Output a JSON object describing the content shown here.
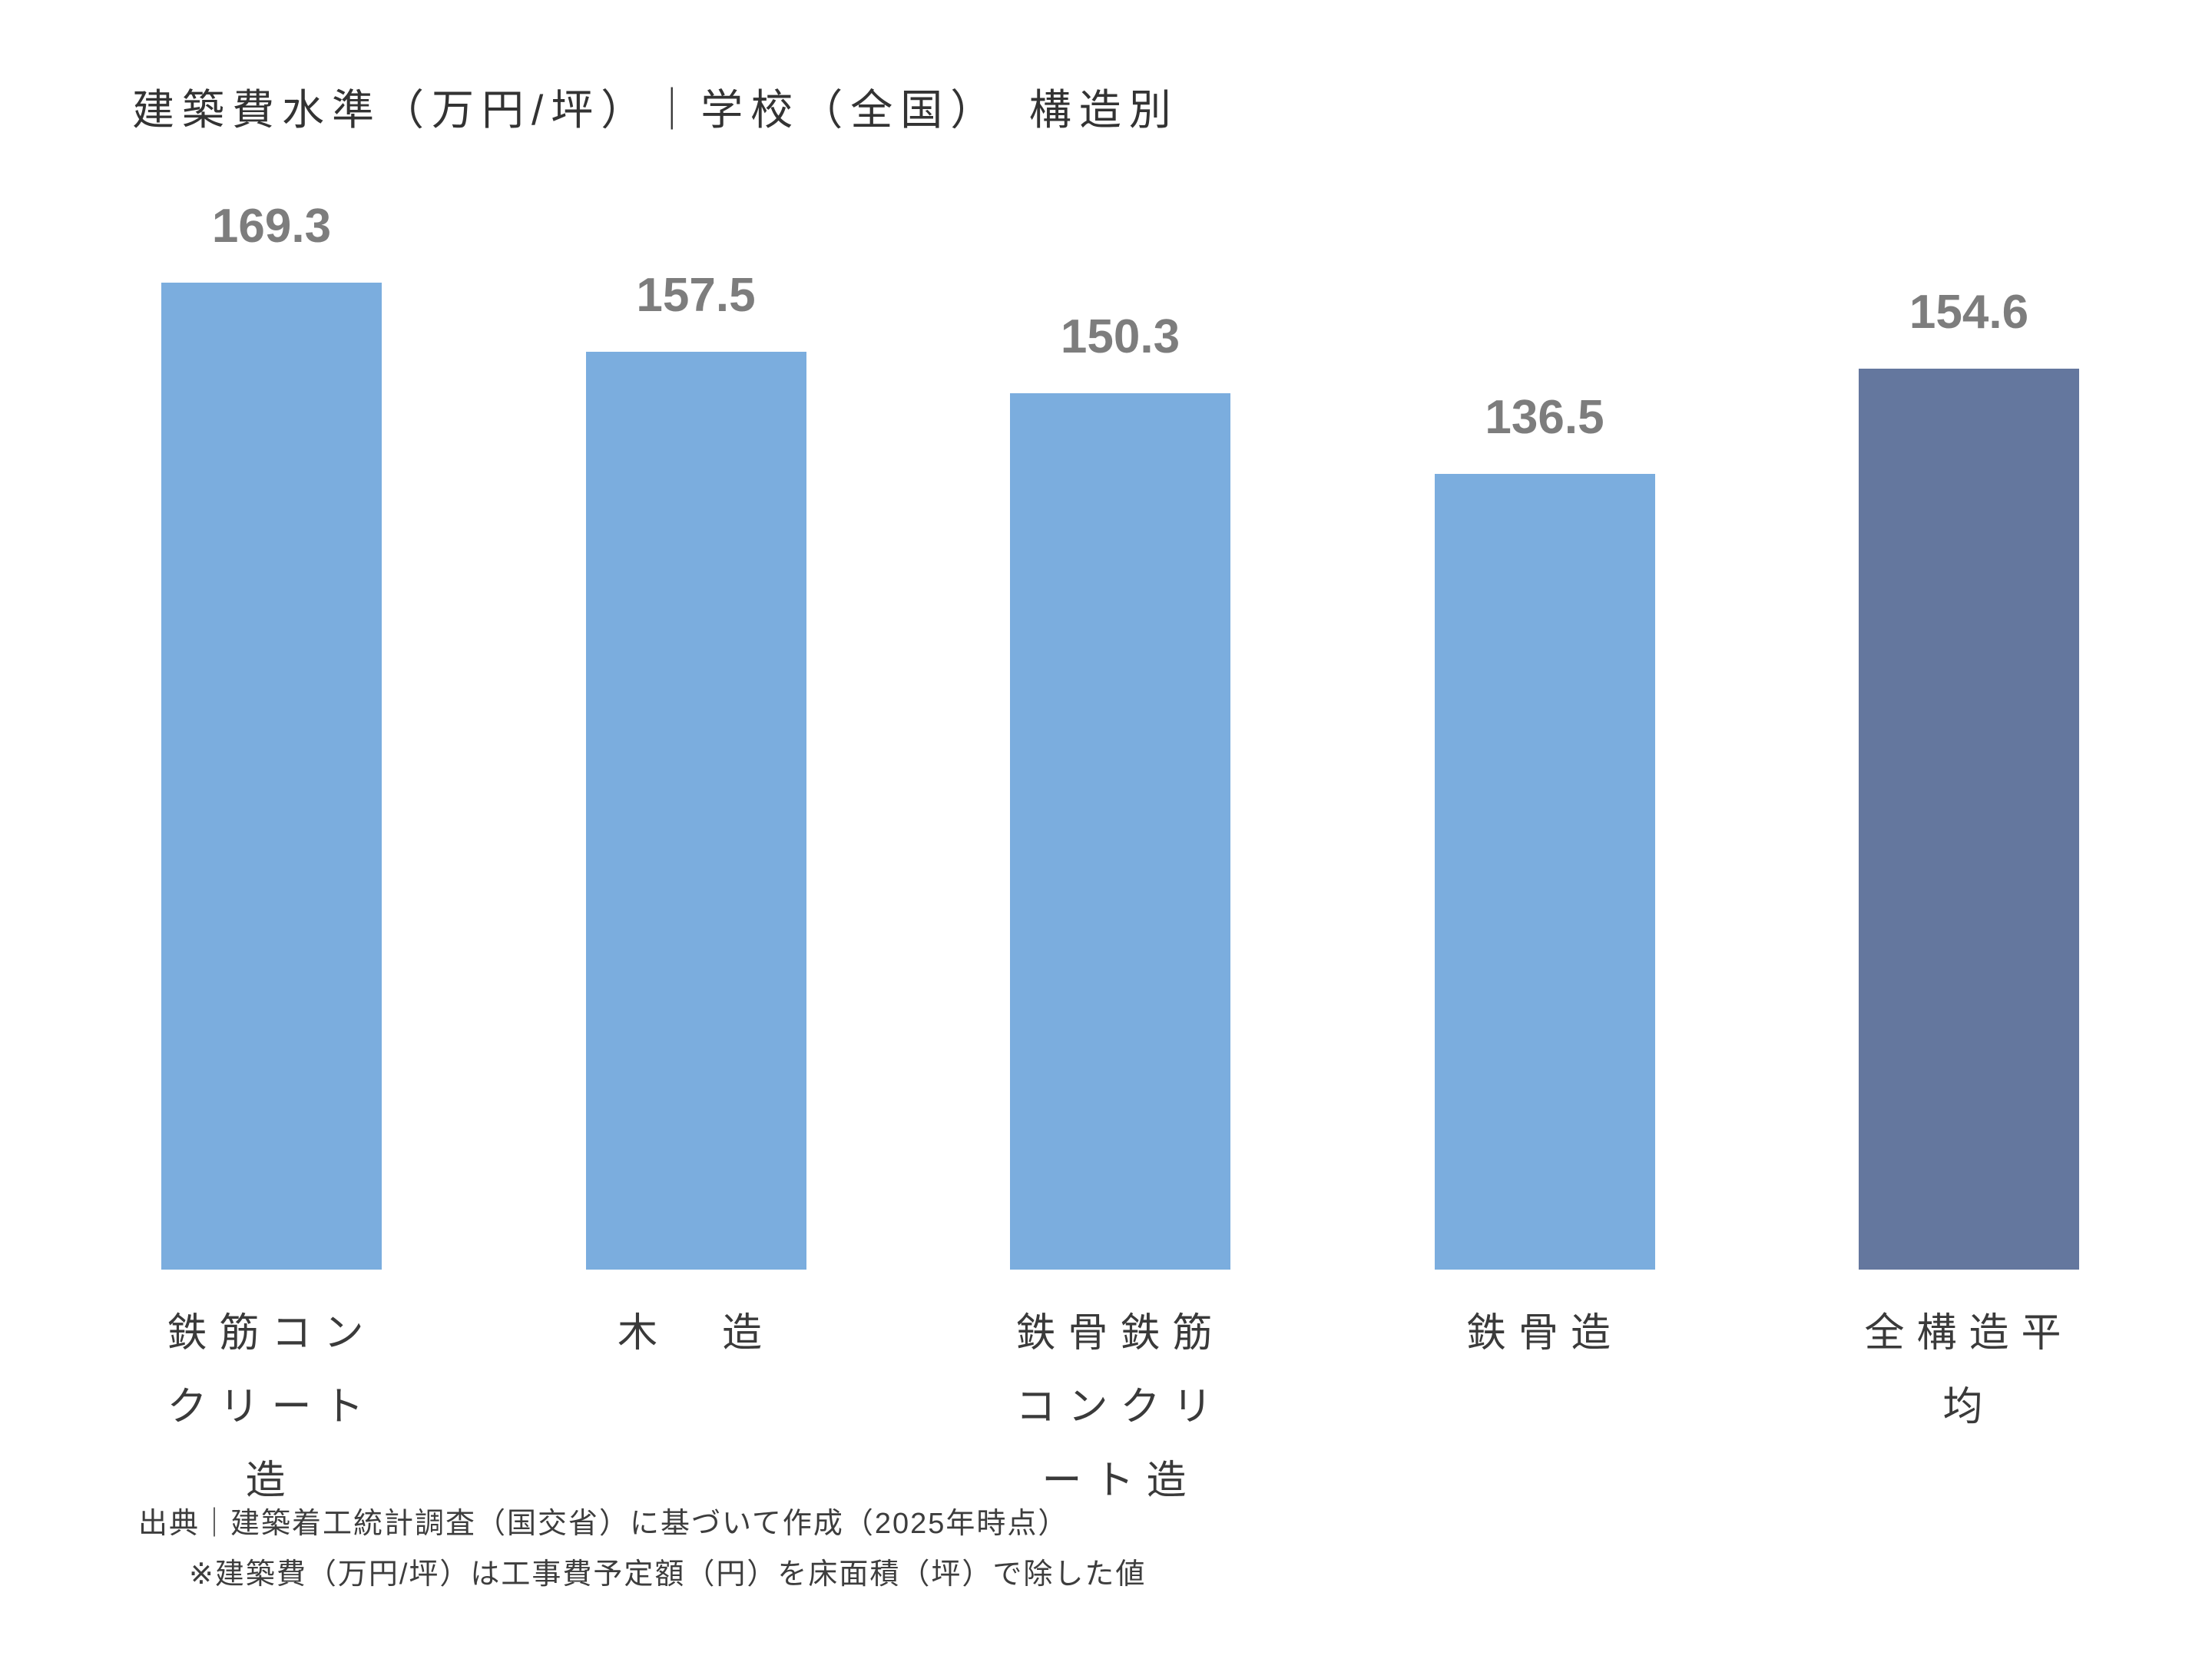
{
  "title": "建築費水準（万円/坪）｜学校（全国）　構造別",
  "chart_data": {
    "type": "bar",
    "title": "建築費水準（万円/坪）｜学校（全国）　構造別",
    "categories": [
      "鉄筋コンクリート造",
      "木　造",
      "鉄骨鉄筋\nコンクリート造",
      "鉄骨造",
      "全構造平均"
    ],
    "values": [
      169.3,
      157.5,
      150.3,
      136.5,
      154.6
    ],
    "value_labels": [
      "169.3",
      "157.5",
      "150.3",
      "136.5",
      "154.6"
    ],
    "bar_colors": [
      "#7badde",
      "#7badde",
      "#7badde",
      "#7badde",
      "#64779e"
    ],
    "unit": "万円/坪",
    "xlabel": "",
    "ylabel": "",
    "ylim": [
      0,
      169.3
    ],
    "axes_visible": false,
    "grid": false,
    "legend": null
  },
  "footer": {
    "source_line": "出典｜建築着工統計調査（国交省）に基づいて作成（2025年時点）",
    "note_line": "※建築費（万円/坪）は工事費予定額（円）を床面積（坪）で除した値"
  },
  "colors": {
    "bar_default": "#7badde",
    "bar_highlight": "#64779e",
    "value_label_text": "#7d7d7d",
    "title_text": "#333333",
    "category_label_text": "#3a3a3a",
    "footer_text": "#3d3d3d",
    "background": "#ffffff"
  }
}
